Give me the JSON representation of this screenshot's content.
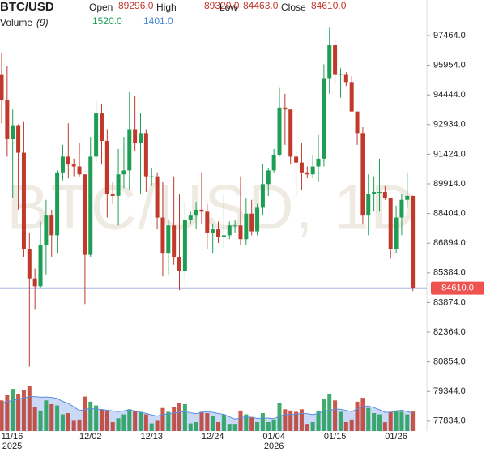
{
  "chart_data": {
    "type": "candlestick",
    "title": "BTC/USD",
    "watermark": "BTC/USD, 1D",
    "header_labels": {
      "open": "Open",
      "high": "High",
      "low": "Low",
      "close": "Close"
    },
    "last_bar": {
      "open": {
        "value": 89296,
        "label": "89296.0"
      },
      "high": {
        "value": 89320,
        "label": "89320.0"
      },
      "low": {
        "value": 84463,
        "label": "84463.0"
      },
      "close": {
        "value": 84610,
        "label": "84610.0"
      }
    },
    "volume_title": "Volume",
    "volume_ma_period": {
      "value": 9,
      "label": "(9)"
    },
    "last_volume": {
      "value": 1520,
      "label": "1520.0"
    },
    "last_volume_ma": {
      "value": 1401,
      "label": "1401.0"
    },
    "last_price": {
      "value": 84610,
      "label": "84610.0"
    },
    "categories": [
      "11/16",
      null,
      null,
      null,
      null,
      null,
      null,
      null,
      null,
      null,
      null,
      null,
      null,
      null,
      null,
      null,
      "12/02",
      null,
      null,
      null,
      null,
      null,
      null,
      null,
      null,
      null,
      null,
      "12/13",
      null,
      null,
      null,
      null,
      null,
      null,
      null,
      null,
      null,
      null,
      "12/24",
      null,
      null,
      null,
      null,
      null,
      null,
      null,
      null,
      null,
      null,
      "01/04",
      null,
      null,
      null,
      null,
      null,
      null,
      null,
      null,
      null,
      null,
      "01/15",
      null,
      null,
      null,
      null,
      null,
      null,
      null,
      null,
      null,
      null,
      "01/26",
      null,
      null,
      null
    ],
    "category_years": [
      "2025",
      null,
      null,
      null,
      null,
      null,
      null,
      null,
      null,
      null,
      null,
      null,
      null,
      null,
      null,
      null,
      null,
      null,
      null,
      null,
      null,
      null,
      null,
      null,
      null,
      null,
      null,
      null,
      null,
      null,
      null,
      null,
      null,
      null,
      null,
      null,
      null,
      null,
      null,
      null,
      null,
      null,
      null,
      null,
      null,
      null,
      null,
      null,
      null,
      "2026",
      null,
      null,
      null,
      null,
      null,
      null,
      null,
      null,
      null,
      null,
      null,
      null,
      null,
      null,
      null,
      null,
      null,
      null,
      null,
      null,
      null,
      null,
      null,
      null,
      null
    ],
    "open": [
      95500,
      94200,
      92200,
      92900,
      91500,
      86600,
      85100,
      84700,
      86800,
      88300,
      87300,
      90500,
      91300,
      90900,
      90800,
      90400,
      86300,
      91300,
      93500,
      92100,
      89400,
      89300,
      90400,
      90600,
      92700,
      92000,
      92500,
      90300,
      90300,
      88200,
      86400,
      87800,
      86200,
      85500,
      88100,
      88300,
      88600,
      88500,
      87400,
      87600,
      87200,
      87300,
      87800,
      87800,
      87100,
      88400,
      87500,
      88700,
      89900,
      90600,
      91400,
      93800,
      93700,
      91300,
      91000,
      90500,
      90400,
      90800,
      91200,
      95300,
      97000,
      95500,
      95500,
      95100,
      93600,
      92500,
      88300,
      89400,
      89500,
      89500,
      89200,
      86600,
      88200,
      89100,
      89296
    ],
    "high": [
      96600,
      95900,
      93700,
      92950,
      93100,
      87400,
      85600,
      88000,
      89100,
      88600,
      90600,
      91900,
      93000,
      91200,
      92000,
      90400,
      92300,
      94100,
      94000,
      92700,
      90000,
      91700,
      92300,
      94600,
      94400,
      93500,
      92700,
      90700,
      90500,
      90000,
      88100,
      90300,
      89400,
      89000,
      88500,
      89000,
      90500,
      88900,
      87900,
      88000,
      89400,
      88000,
      88100,
      90300,
      89200,
      89100,
      88900,
      90900,
      90700,
      91700,
      94800,
      94500,
      93700,
      91600,
      92000,
      90800,
      91400,
      92400,
      96000,
      97900,
      97300,
      95800,
      95600,
      95400,
      93600,
      92800,
      90400,
      90300,
      91200,
      89800,
      89200,
      88800,
      89400,
      90500,
      89320
    ],
    "low": [
      93000,
      91300,
      89200,
      88600,
      86200,
      80600,
      83500,
      84600,
      85300,
      86200,
      86400,
      90100,
      90200,
      90300,
      90300,
      83800,
      86200,
      91000,
      90900,
      88200,
      88900,
      87800,
      89700,
      89600,
      91600,
      89400,
      89500,
      89800,
      87600,
      85200,
      85300,
      85800,
      84500,
      85100,
      87900,
      87600,
      87900,
      86600,
      86400,
      86900,
      86600,
      87100,
      87400,
      86800,
      86800,
      87300,
      87300,
      88300,
      89300,
      90500,
      91300,
      91900,
      90900,
      89300,
      89600,
      90200,
      90200,
      90000,
      90800,
      94500,
      95000,
      94300,
      94900,
      93600,
      91900,
      87900,
      87300,
      88500,
      88500,
      89100,
      86100,
      86400,
      87300,
      88700,
      84463
    ],
    "close": [
      94200,
      92200,
      92900,
      91500,
      86600,
      85100,
      84700,
      86800,
      88300,
      87300,
      90500,
      91300,
      90900,
      90800,
      90400,
      86300,
      91300,
      93500,
      92100,
      89400,
      89300,
      90400,
      90600,
      92700,
      92000,
      92500,
      90300,
      90300,
      88200,
      86400,
      87800,
      86200,
      85500,
      88100,
      88300,
      88600,
      88500,
      87400,
      87600,
      87200,
      87300,
      87800,
      87800,
      87100,
      88400,
      87500,
      88700,
      89900,
      90600,
      91400,
      93800,
      93700,
      91300,
      91000,
      90500,
      90400,
      90800,
      91200,
      95300,
      97000,
      95500,
      95500,
      95100,
      93600,
      92500,
      88300,
      89400,
      89500,
      89500,
      89200,
      86600,
      88200,
      89100,
      89300,
      84610
    ],
    "volume": [
      2400,
      2800,
      3300,
      2900,
      3200,
      3500,
      1900,
      1600,
      2400,
      2100,
      2000,
      1300,
      1400,
      800,
      900,
      2700,
      2300,
      2000,
      1700,
      1600,
      700,
      1000,
      1300,
      1700,
      1600,
      1500,
      1300,
      600,
      800,
      1800,
      1500,
      1900,
      2200,
      2100,
      600,
      700,
      1500,
      1400,
      1200,
      700,
      1300,
      500,
      500,
      1600,
      1300,
      1100,
      700,
      1400,
      700,
      900,
      2200,
      1700,
      1600,
      1500,
      1700,
      500,
      700,
      1600,
      2500,
      2900,
      2400,
      1500,
      700,
      900,
      2300,
      2600,
      1800,
      1400,
      1300,
      689,
      1500,
      1600,
      1500,
      1300,
      1520
    ],
    "volume_ma": [
      2200,
      2300,
      2400,
      2500,
      2600,
      2700,
      2700,
      2650,
      2667,
      2633,
      2544,
      2322,
      2156,
      1889,
      1600,
      1689,
      1767,
      1722,
      1678,
      1633,
      1567,
      1522,
      1578,
      1667,
      1544,
      1456,
      1378,
      1256,
      1167,
      1289,
      1344,
      1411,
      1467,
      1522,
      1422,
      1356,
      1456,
      1522,
      1456,
      1367,
      1300,
      1111,
      933,
      1044,
      1111,
      1067,
      989,
      1011,
      1011,
      967,
      1156,
      1289,
      1289,
      1311,
      1378,
      1356,
      1278,
      1378,
      1556,
      1633,
      1711,
      1700,
      1611,
      1522,
      1722,
      1933,
      1956,
      1833,
      1656,
      1465,
      1465,
      1565,
      1632,
      1521,
      1401
    ],
    "ylim": [
      77332,
      99279
    ],
    "yticks": [
      {
        "value": 97464,
        "label": "97464.0"
      },
      {
        "value": 95954,
        "label": "95954.0"
      },
      {
        "value": 94444,
        "label": "94444.0"
      },
      {
        "value": 92934,
        "label": "92934.0"
      },
      {
        "value": 91424,
        "label": "91424.0"
      },
      {
        "value": 89914,
        "label": "89914.0"
      },
      {
        "value": 88404,
        "label": "88404.0"
      },
      {
        "value": 86894,
        "label": "86894.0"
      },
      {
        "value": 85384,
        "label": "85384.0"
      },
      {
        "value": 83874,
        "label": "83874.0"
      },
      {
        "value": 82364,
        "label": "82364.0"
      },
      {
        "value": 80854,
        "label": "80854.0"
      },
      {
        "value": 79344,
        "label": "79344.0"
      },
      {
        "value": 77834,
        "label": "77834.0"
      }
    ],
    "up_color": "#1e9e55",
    "down_color": "#c0392b",
    "ma_color": "#5b8fe0",
    "ma_fill": "#bcd0f4",
    "close_line_color": "#5c6bc0",
    "price_label_color": "#ef5350"
  }
}
